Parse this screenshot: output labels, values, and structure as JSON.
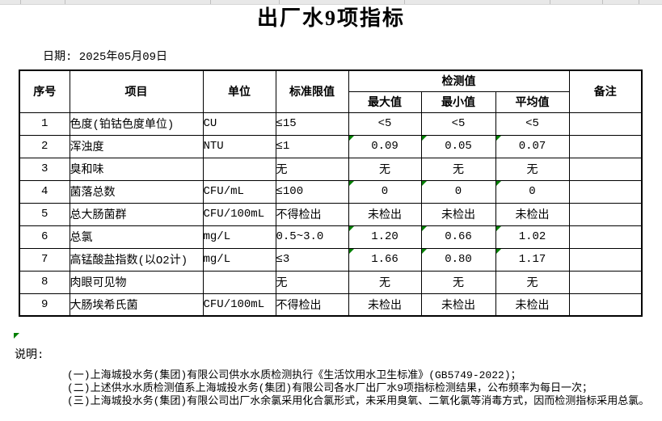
{
  "page": {
    "title": "出厂水9项指标",
    "date_line": "日期: 2025年05月09日"
  },
  "table": {
    "header": {
      "no": "序号",
      "item": "项目",
      "unit": "单位",
      "limit": "标准限值",
      "detection_group": "检测值",
      "max": "最大值",
      "min": "最小值",
      "avg": "平均值",
      "remark": "备注"
    },
    "rows": [
      {
        "no": "1",
        "item": "色度(铂钴色度单位)",
        "unit": "CU",
        "limit": "≤15",
        "max": "<5",
        "min": "<5",
        "avg": "<5",
        "remark": "",
        "flagged": false
      },
      {
        "no": "2",
        "item": "浑浊度",
        "unit": "NTU",
        "limit": "≤1",
        "max": "0.09",
        "min": "0.05",
        "avg": "0.07",
        "remark": "",
        "flagged": true
      },
      {
        "no": "3",
        "item": "臭和味",
        "unit": "",
        "limit": "无",
        "max": "无",
        "min": "无",
        "avg": "无",
        "remark": "",
        "flagged": false
      },
      {
        "no": "4",
        "item": "菌落总数",
        "unit": "CFU/mL",
        "limit": "≤100",
        "max": "0",
        "min": "0",
        "avg": "0",
        "remark": "",
        "flagged": true
      },
      {
        "no": "5",
        "item": "总大肠菌群",
        "unit": "CFU/100mL",
        "limit": "不得检出",
        "max": "未检出",
        "min": "未检出",
        "avg": "未检出",
        "remark": "",
        "flagged": false
      },
      {
        "no": "6",
        "item": "总氯",
        "unit": "mg/L",
        "limit": "0.5~3.0",
        "max": "1.20",
        "min": "0.66",
        "avg": "1.02",
        "remark": "",
        "flagged": true
      },
      {
        "no": "7",
        "item": "高锰酸盐指数(以O2计)",
        "unit": "mg/L",
        "limit": "≤3",
        "max": "1.66",
        "min": "0.80",
        "avg": "1.17",
        "remark": "",
        "flagged": true
      },
      {
        "no": "8",
        "item": "肉眼可见物",
        "unit": "",
        "limit": "无",
        "max": "无",
        "min": "无",
        "avg": "无",
        "remark": "",
        "flagged": false
      },
      {
        "no": "9",
        "item": "大肠埃希氏菌",
        "unit": "CFU/100mL",
        "limit": "不得检出",
        "max": "未检出",
        "min": "未检出",
        "avg": "未检出",
        "remark": "",
        "flagged": false
      }
    ]
  },
  "notes": {
    "label": "说明:",
    "lines": [
      "(一)上海城投水务(集团)有限公司供水水质检测执行《生活饮用水卫生标准》(GB5749-2022)；",
      "(二)上述供水水质检测值系上海城投水务(集团)有限公司各水厂出厂水9项指标检测结果，公布频率为每日一次；",
      "(三)上海城投水务(集团)有限公司出厂水余氯采用化合氯形式，未采用臭氧、二氧化氯等消毒方式，因而检测指标采用总氯。"
    ]
  },
  "colors": {
    "flag_green": "#008000",
    "table_border": "#000000",
    "grid_strip_bg": "#e8e8e8",
    "grid_strip_line": "#bfbfbf"
  }
}
